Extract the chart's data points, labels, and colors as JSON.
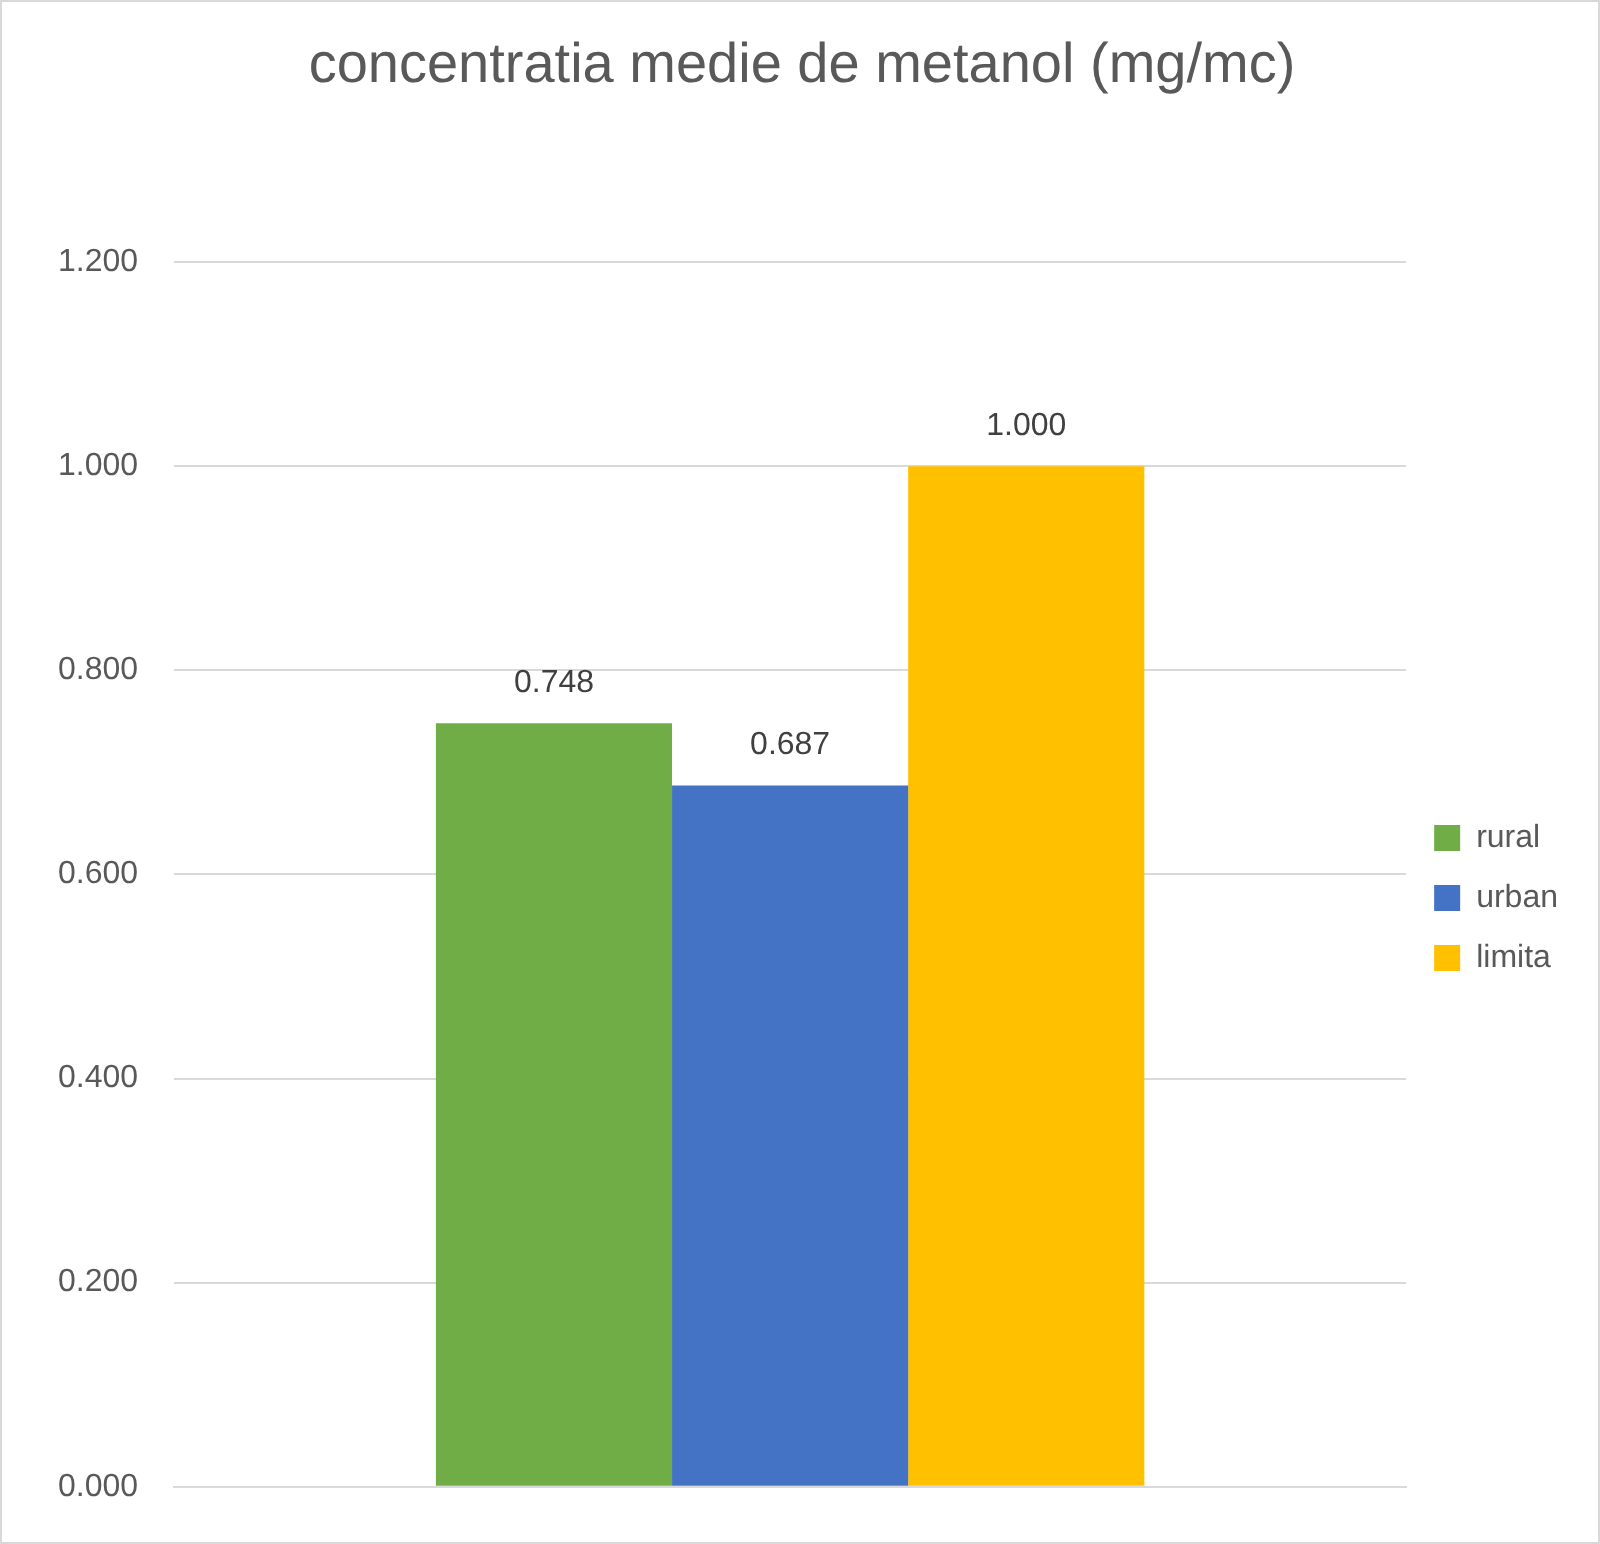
{
  "chart_data": {
    "type": "bar",
    "title": "concentratia medie  de metanol (mg/mc)",
    "categories": [
      null
    ],
    "series": [
      {
        "name": "rural",
        "color": "#70ad47",
        "values": [
          0.748
        ],
        "value_labels": [
          "0.748"
        ]
      },
      {
        "name": "urban",
        "color": "#4472c4",
        "values": [
          0.687
        ],
        "value_labels": [
          "0.687"
        ]
      },
      {
        "name": "limita",
        "color": "#ffc000",
        "values": [
          1.0
        ],
        "value_labels": [
          "1.000"
        ]
      }
    ],
    "ylim": [
      0,
      1.2
    ],
    "yticks": [
      {
        "value": 0,
        "label": "0.000"
      },
      {
        "value": 0.2,
        "label": "0.200"
      },
      {
        "value": 0.4,
        "label": "0.400"
      },
      {
        "value": 0.6,
        "label": "0.600"
      },
      {
        "value": 0.8,
        "label": "0.800"
      },
      {
        "value": 1.0,
        "label": "1.000"
      },
      {
        "value": 1.2,
        "label": "1.200"
      }
    ],
    "grid": "y",
    "legend": "right"
  }
}
